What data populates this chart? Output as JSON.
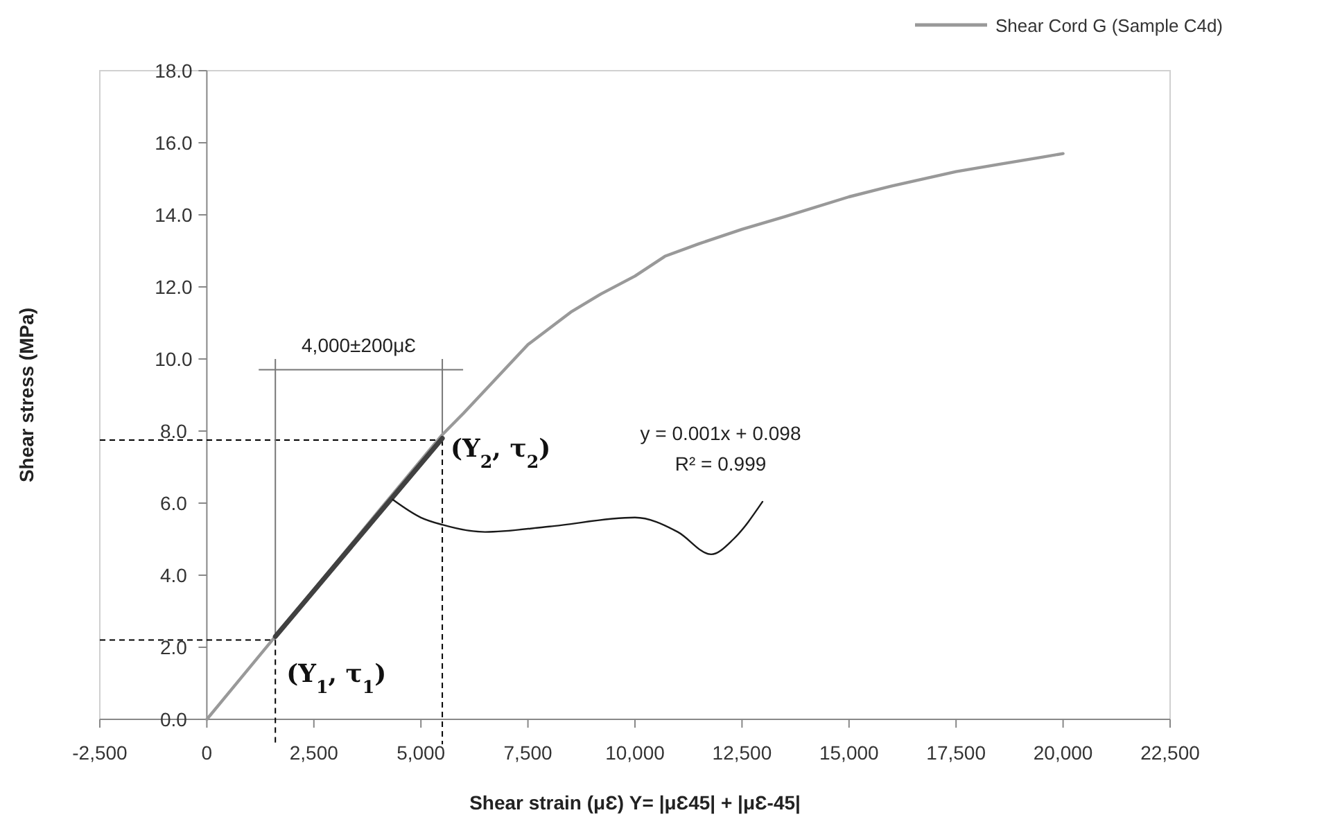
{
  "chart_data": {
    "type": "line",
    "xlabel": "Shear strain (μƐ) Υ=  |μƐ45| + |μƐ-45|",
    "ylabel": "Shear stress (MPa)",
    "xlim": [
      -2500,
      22500
    ],
    "xticks": [
      {
        "value": -2500,
        "label": "-2,500"
      },
      {
        "value": 0,
        "label": "0"
      },
      {
        "value": 2500,
        "label": "2,500"
      },
      {
        "value": 5000,
        "label": "5,000"
      },
      {
        "value": 7500,
        "label": "7,500"
      },
      {
        "value": 10000,
        "label": "10,000"
      },
      {
        "value": 12500,
        "label": "12,500"
      },
      {
        "value": 15000,
        "label": "15,000"
      },
      {
        "value": 17500,
        "label": "17,500"
      },
      {
        "value": 20000,
        "label": "20,000"
      },
      {
        "value": 22500,
        "label": "22,500"
      }
    ],
    "ylim": [
      0,
      18
    ],
    "yticks": [
      {
        "value": 0,
        "label": "0.0"
      },
      {
        "value": 2,
        "label": "2.0"
      },
      {
        "value": 4,
        "label": "4.0"
      },
      {
        "value": 6,
        "label": "6.0"
      },
      {
        "value": 8,
        "label": "8.0"
      },
      {
        "value": 10,
        "label": "10.0"
      },
      {
        "value": 12,
        "label": "12.0"
      },
      {
        "value": 14,
        "label": "14.0"
      },
      {
        "value": 16,
        "label": "16.0"
      },
      {
        "value": 18,
        "label": "18.0"
      }
    ],
    "grid": false,
    "legend": "top right",
    "marker": "none",
    "line_style": "solid",
    "series": [
      {
        "name": "Shear Cord G (Sample C4d)",
        "color": "#999999",
        "x": [
          0,
          1000,
          2500,
          4000,
          5500,
          6000,
          7500,
          8500,
          9200,
          10000,
          10700,
          11500,
          12500,
          13500,
          15000,
          16000,
          17500,
          18500,
          19500,
          20000
        ],
        "values": [
          0,
          1.44,
          3.6,
          5.76,
          7.9,
          8.5,
          10.4,
          11.3,
          11.8,
          12.3,
          12.85,
          13.2,
          13.6,
          13.95,
          14.5,
          14.8,
          15.2,
          15.4,
          15.6,
          15.7
        ]
      },
      {
        "type": "line",
        "color": "#404040",
        "x": [
          1600,
          5500
        ],
        "values": [
          2.3,
          7.8
        ]
      },
      {
        "type": "line",
        "color": "#1a1a1a",
        "x": [
          4340,
          5000,
          5500,
          6500,
          8000,
          10000,
          11000,
          11780,
          12300,
          12980
        ],
        "values": [
          6.1,
          5.6,
          5.4,
          5.2,
          5.35,
          5.6,
          5.2,
          4.58,
          5.0,
          6.04
        ]
      }
    ],
    "annotations": [
      {
        "text": "(Υ$_{1}$, τ$_{1}$)",
        "x": 1600,
        "y": 2.2
      },
      {
        "text": "(Υ$_{2}$, τ$_{2}$)",
        "x": 5500,
        "y": 7.75
      },
      "4,000±200μƐ",
      "y = 0.001x  + 0.098",
      "R² = 0.999"
    ]
  }
}
